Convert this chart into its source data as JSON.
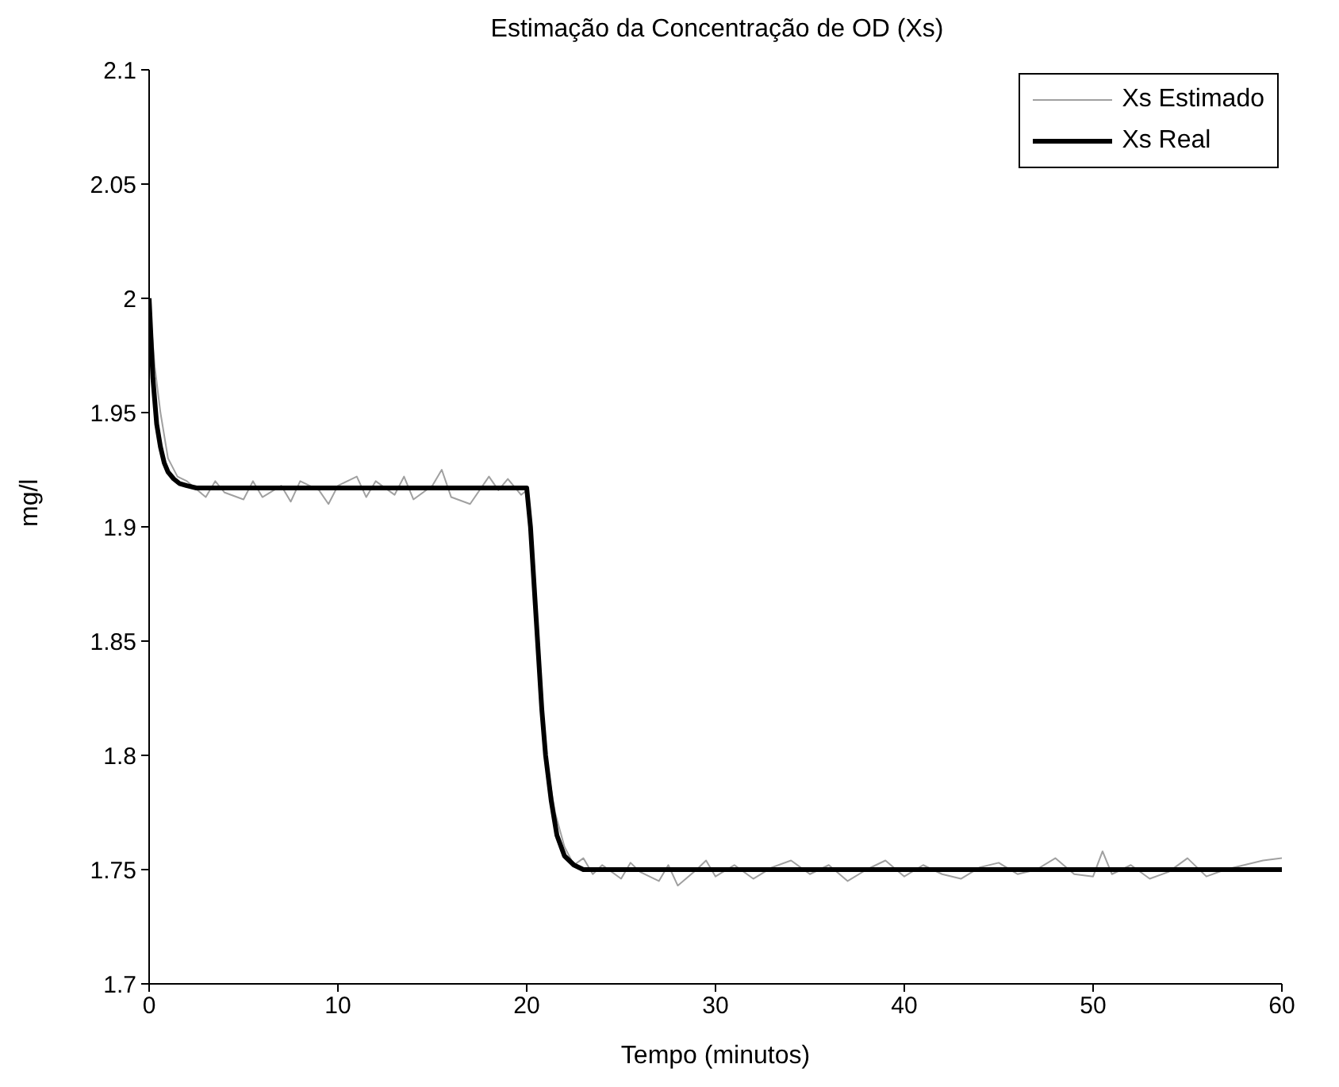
{
  "chart_data": {
    "type": "line",
    "title": "Estimação da Concentração de OD (Xs)",
    "xlabel": "Tempo (minutos)",
    "ylabel": "mg/l",
    "xlim": [
      0,
      60
    ],
    "xticks": [
      0,
      10,
      20,
      30,
      40,
      50,
      60
    ],
    "ylim": [
      1.7,
      2.1
    ],
    "yticks": [
      1.7,
      1.75,
      1.8,
      1.85,
      1.9,
      1.95,
      2,
      2.05,
      2.1
    ],
    "grid": false,
    "legend": "top right",
    "marker": "none",
    "line_style": "solid",
    "series": [
      {
        "name": "Xs Estimado",
        "color": "#a0a0a0",
        "x": [
          0,
          0.3,
          0.6,
          1,
          1.5,
          2,
          3,
          3.5,
          4,
          5,
          5.5,
          6,
          7,
          7.5,
          8,
          9,
          9.5,
          10,
          11,
          11.5,
          12,
          13,
          13.5,
          14,
          15,
          15.5,
          16,
          17,
          18,
          18.5,
          19,
          19.7,
          20,
          20.3,
          20.6,
          21,
          21.5,
          22,
          22.5,
          23,
          23.5,
          24,
          25,
          25.5,
          26,
          27,
          27.5,
          28,
          29,
          29.5,
          30,
          31,
          32,
          33,
          34,
          35,
          36,
          37,
          38,
          39,
          40,
          41,
          42,
          43,
          44,
          45,
          46,
          47,
          48,
          49,
          50,
          50.5,
          51,
          52,
          53,
          54,
          55,
          56,
          57,
          58,
          59,
          60
        ],
        "values": [
          2.0,
          1.97,
          1.95,
          1.93,
          1.922,
          1.92,
          1.913,
          1.92,
          1.915,
          1.912,
          1.92,
          1.913,
          1.918,
          1.911,
          1.92,
          1.916,
          1.91,
          1.918,
          1.922,
          1.913,
          1.92,
          1.914,
          1.922,
          1.912,
          1.918,
          1.925,
          1.913,
          1.91,
          1.922,
          1.916,
          1.921,
          1.914,
          1.916,
          1.89,
          1.84,
          1.8,
          1.775,
          1.76,
          1.752,
          1.755,
          1.748,
          1.752,
          1.746,
          1.753,
          1.749,
          1.745,
          1.752,
          1.743,
          1.75,
          1.754,
          1.747,
          1.752,
          1.746,
          1.751,
          1.754,
          1.748,
          1.752,
          1.745,
          1.75,
          1.754,
          1.747,
          1.752,
          1.748,
          1.746,
          1.751,
          1.753,
          1.748,
          1.75,
          1.755,
          1.748,
          1.747,
          1.758,
          1.748,
          1.752,
          1.746,
          1.749,
          1.755,
          1.747,
          1.75,
          1.752,
          1.754,
          1.755
        ]
      },
      {
        "name": "Xs Real",
        "color": "#000000",
        "x": [
          0,
          0.2,
          0.4,
          0.6,
          0.8,
          1,
          1.3,
          1.6,
          2,
          2.5,
          20,
          20.2,
          20.5,
          20.8,
          21,
          21.3,
          21.6,
          22,
          22.5,
          23,
          60
        ],
        "values": [
          2.0,
          1.965,
          1.945,
          1.935,
          1.928,
          1.924,
          1.921,
          1.919,
          1.918,
          1.917,
          1.917,
          1.9,
          1.86,
          1.82,
          1.8,
          1.78,
          1.765,
          1.756,
          1.752,
          1.75,
          1.75
        ]
      }
    ]
  }
}
